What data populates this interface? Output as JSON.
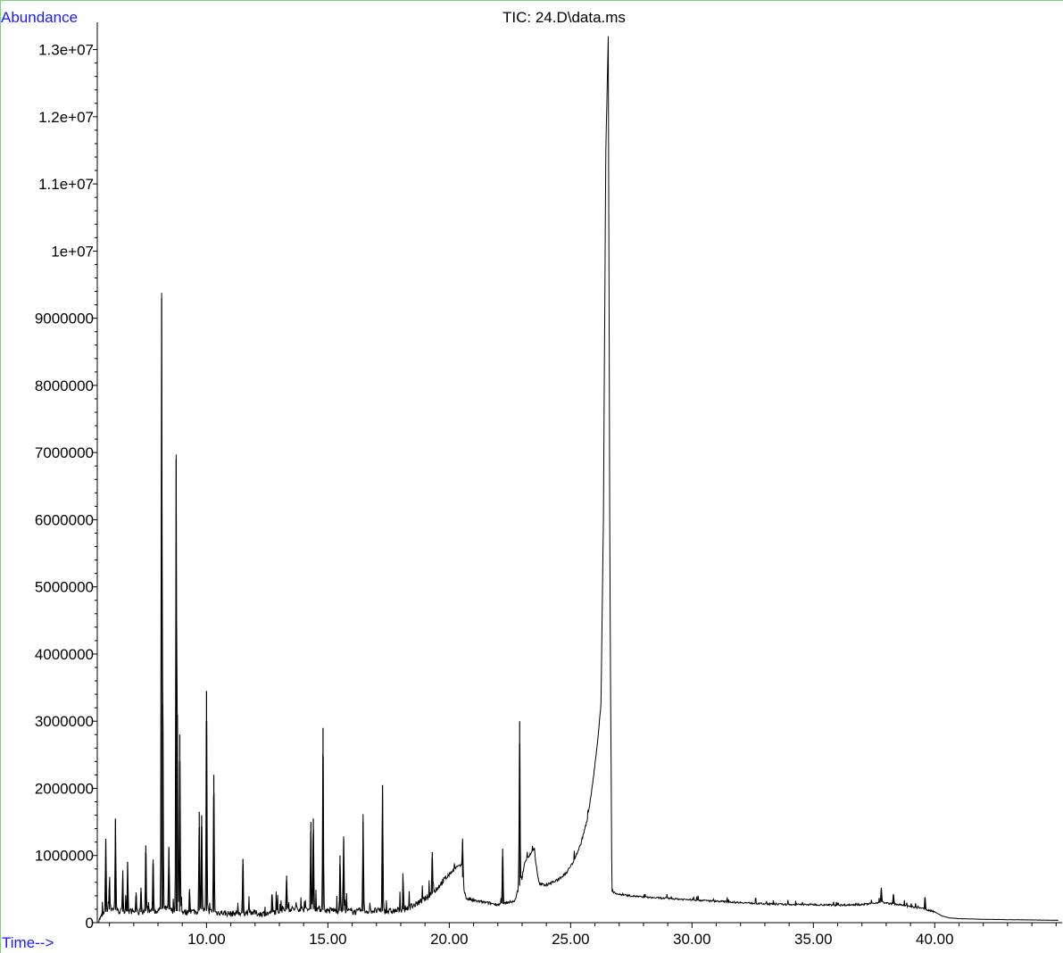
{
  "chart_data": {
    "type": "line",
    "title": "TIC: 24.D\\data.ms",
    "ylabel": "Abundance",
    "xlabel": "Time-->",
    "xlim": [
      5.5,
      45.1
    ],
    "ylim": [
      0,
      13300000
    ],
    "grid": false,
    "xticks": [
      10,
      15,
      20,
      25,
      30,
      35,
      40
    ],
    "xtick_labels": [
      "10.00",
      "15.00",
      "20.00",
      "25.00",
      "30.00",
      "35.00",
      "40.00"
    ],
    "yticks": [
      0,
      1000000,
      2000000,
      3000000,
      4000000,
      5000000,
      6000000,
      7000000,
      8000000,
      9000000,
      10000000,
      11000000,
      12000000,
      13000000
    ],
    "ytick_labels": [
      "0",
      "1000000",
      "2000000",
      "3000000",
      "4000000",
      "5000000",
      "6000000",
      "7000000",
      "8000000",
      "9000000",
      "1e+07",
      "1.1e+07",
      "1.2e+07",
      "1.3e+07"
    ],
    "series": [
      {
        "color": "#000000",
        "x": [
          5.55,
          5.8,
          6.1,
          6.3,
          6.6,
          6.9,
          7.2,
          7.6,
          7.9,
          8.1,
          8.25,
          8.4,
          8.6,
          8.85,
          9.0,
          9.2,
          9.4,
          9.6,
          9.8,
          9.95,
          10.1,
          10.25,
          10.4,
          10.6,
          10.8,
          11.0,
          11.3,
          11.5,
          11.8,
          12.2,
          12.6,
          13.0,
          13.4,
          13.8,
          14.1,
          14.35,
          14.6,
          14.8,
          15.0,
          15.2,
          15.4,
          15.6,
          15.8,
          16.1,
          16.5,
          16.9,
          17.3,
          17.7,
          18.1,
          18.5,
          18.9,
          19.3,
          19.7,
          20.0,
          20.3,
          20.5,
          20.6,
          20.7,
          21.0,
          21.5,
          22.0,
          22.2,
          22.4,
          22.7,
          22.8,
          23.0,
          23.1,
          23.3,
          23.5,
          23.6,
          23.7,
          24.0,
          24.4,
          24.8,
          25.1,
          25.4,
          25.7,
          25.9,
          26.1,
          26.25,
          26.35,
          26.45,
          26.55,
          26.62,
          26.7,
          27.0,
          27.5,
          28.0,
          29.0,
          30.0,
          31.0,
          32.0,
          33.0,
          34.0,
          35.0,
          36.0,
          37.0,
          37.5,
          37.8,
          38.0,
          38.5,
          39.0,
          39.5,
          40.0,
          40.3,
          40.6,
          41.0,
          42.0,
          43.0,
          44.0,
          45.1
        ],
        "y": [
          30000,
          150000,
          220000,
          180000,
          160000,
          170000,
          150000,
          180000,
          170000,
          190000,
          220000,
          200000,
          180000,
          170000,
          160000,
          150000,
          170000,
          160000,
          200000,
          180000,
          170000,
          160000,
          150000,
          150000,
          140000,
          130000,
          150000,
          140000,
          160000,
          130000,
          140000,
          180000,
          200000,
          210000,
          190000,
          200000,
          210000,
          190000,
          180000,
          190000,
          170000,
          180000,
          180000,
          160000,
          170000,
          180000,
          170000,
          170000,
          200000,
          250000,
          330000,
          430000,
          600000,
          720000,
          830000,
          850000,
          500000,
          360000,
          330000,
          300000,
          270000,
          280000,
          300000,
          320000,
          450000,
          650000,
          900000,
          1000000,
          1100000,
          800000,
          580000,
          560000,
          620000,
          730000,
          900000,
          1150000,
          1550000,
          2050000,
          2650000,
          3250000,
          6000000,
          11500000,
          13200000,
          5000000,
          460000,
          420000,
          400000,
          380000,
          360000,
          340000,
          320000,
          300000,
          280000,
          270000,
          270000,
          260000,
          270000,
          290000,
          310000,
          290000,
          270000,
          240000,
          210000,
          160000,
          100000,
          70000,
          60000,
          50000,
          45000,
          40000,
          35000
        ]
      }
    ],
    "peaks": [
      {
        "x": 5.85,
        "y": 1250000
      },
      {
        "x": 6.0,
        "y": 600000
      },
      {
        "x": 6.25,
        "y": 1550000
      },
      {
        "x": 6.55,
        "y": 650000
      },
      {
        "x": 6.75,
        "y": 900000
      },
      {
        "x": 7.1,
        "y": 450000
      },
      {
        "x": 7.3,
        "y": 520000
      },
      {
        "x": 7.5,
        "y": 1150000
      },
      {
        "x": 7.8,
        "y": 940000
      },
      {
        "x": 8.15,
        "y": 9300000
      },
      {
        "x": 8.2,
        "y": 3250000
      },
      {
        "x": 8.45,
        "y": 1100000
      },
      {
        "x": 8.75,
        "y": 6900000
      },
      {
        "x": 8.8,
        "y": 3100000
      },
      {
        "x": 8.9,
        "y": 2800000
      },
      {
        "x": 9.3,
        "y": 500000
      },
      {
        "x": 9.7,
        "y": 1650000
      },
      {
        "x": 9.8,
        "y": 1600000
      },
      {
        "x": 10.0,
        "y": 3450000
      },
      {
        "x": 10.3,
        "y": 2200000
      },
      {
        "x": 11.5,
        "y": 950000
      },
      {
        "x": 12.7,
        "y": 420000
      },
      {
        "x": 13.3,
        "y": 700000
      },
      {
        "x": 14.3,
        "y": 1500000
      },
      {
        "x": 14.4,
        "y": 1550000
      },
      {
        "x": 14.8,
        "y": 2900000
      },
      {
        "x": 15.5,
        "y": 1000000
      },
      {
        "x": 15.65,
        "y": 1250000
      },
      {
        "x": 16.45,
        "y": 1500000
      },
      {
        "x": 17.25,
        "y": 2050000
      },
      {
        "x": 18.1,
        "y": 550000
      },
      {
        "x": 19.3,
        "y": 1050000
      },
      {
        "x": 20.55,
        "y": 1200000
      },
      {
        "x": 22.2,
        "y": 1100000
      },
      {
        "x": 22.9,
        "y": 3000000
      },
      {
        "x": 37.8,
        "y": 520000
      },
      {
        "x": 38.3,
        "y": 420000
      },
      {
        "x": 39.6,
        "y": 380000
      }
    ]
  }
}
